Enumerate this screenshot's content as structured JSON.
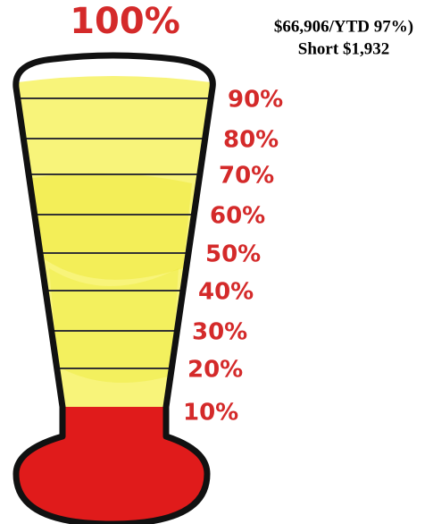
{
  "header": {
    "top_label": "100%",
    "status": "$66,906/YTD 97%)",
    "shortfall": "Short $1,932"
  },
  "scale_labels": [
    "90%",
    "80%",
    "70%",
    "60%",
    "50%",
    "40%",
    "30%",
    "20%",
    "10%"
  ]
}
